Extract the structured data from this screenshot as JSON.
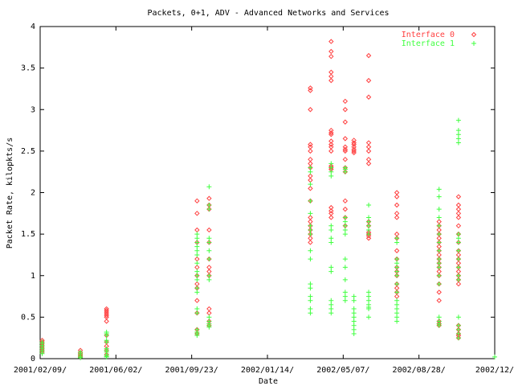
{
  "chart_data": {
    "type": "scatter",
    "title": "Packets, 0+1, ADV - Advanced Networks and Services",
    "xlabel": "Date",
    "ylabel": "Packet Rate, kilopkts/s",
    "xlim": [
      "2001-02-09",
      "2002-12-19"
    ],
    "ylim": [
      0,
      4
    ],
    "x_ticks": [
      "2001-02-09",
      "2001-06-02",
      "2001-09-23",
      "2002-01-14",
      "2002-05-07",
      "2002-08-28",
      "2002-12-19"
    ],
    "x_tick_labels": [
      "2001/02/09/",
      "2001/06/02/",
      "2001/09/23/",
      "2002/01/14/",
      "2002/05/07/",
      "2002/08/28/",
      "2002/12/"
    ],
    "y_ticks": [
      0,
      0.5,
      1,
      1.5,
      2,
      2.5,
      3,
      3.5,
      4
    ],
    "y_tick_labels": [
      "0",
      "0.5",
      "1",
      "1.5",
      "2",
      "2.5",
      "3",
      "3.5",
      "4"
    ],
    "grid": false,
    "legend_position": "top-right",
    "series": [
      {
        "name": "Interface 0",
        "marker": "diamond",
        "color": "#ff4040",
        "points": [
          {
            "x": "2001-02-12",
            "y": [
              0.22,
              0.2,
              0.18,
              0.16,
              0.14,
              0.12,
              0.1,
              0.08
            ]
          },
          {
            "x": "2001-04-10",
            "y": [
              0.1,
              0.07,
              0.05,
              0.03,
              0.02
            ]
          },
          {
            "x": "2001-05-19",
            "y": [
              0.6,
              0.58,
              0.56,
              0.54,
              0.52,
              0.5,
              0.45,
              0.28,
              0.2,
              0.15,
              0.1,
              0.05
            ]
          },
          {
            "x": "2001-10-01",
            "y": [
              1.9,
              1.75,
              1.55,
              1.4,
              1.2,
              1.1,
              1.0,
              0.9,
              0.85,
              0.7,
              0.55,
              0.35,
              0.3
            ]
          },
          {
            "x": "2001-10-19",
            "y": [
              1.93,
              1.85,
              1.8,
              1.55,
              1.4,
              1.2,
              1.1,
              1.05,
              1.0,
              0.6,
              0.55,
              0.45,
              0.4
            ]
          },
          {
            "x": "2002-03-19",
            "y": [
              3.26,
              3.23,
              3.0,
              2.58,
              2.55,
              2.5,
              2.4,
              2.35,
              2.3,
              2.2,
              2.15,
              2.05,
              1.9,
              1.7,
              1.65,
              1.6,
              1.55,
              1.5,
              1.45,
              1.4
            ]
          },
          {
            "x": "2002-04-19",
            "y": [
              3.82,
              3.7,
              3.64,
              3.45,
              3.4,
              3.35,
              2.75,
              2.72,
              2.7,
              2.62,
              2.58,
              2.55,
              2.5,
              2.32,
              2.3,
              2.28,
              1.82,
              1.78,
              1.75,
              1.7
            ]
          },
          {
            "x": "2002-05-10",
            "y": [
              3.1,
              3.0,
              2.85,
              2.65,
              2.55,
              2.52,
              2.5,
              2.4,
              2.3,
              2.25,
              1.9,
              1.8,
              1.7,
              1.6
            ]
          },
          {
            "x": "2002-05-23",
            "y": [
              2.63,
              2.6,
              2.58,
              2.55,
              2.52,
              2.5,
              2.48
            ]
          },
          {
            "x": "2002-06-14",
            "y": [
              3.65,
              3.35,
              3.15,
              2.6,
              2.55,
              2.5,
              2.4,
              2.35,
              1.65,
              1.6,
              1.52,
              1.5,
              1.48,
              1.45
            ]
          },
          {
            "x": "2002-07-26",
            "y": [
              2.0,
              1.95,
              1.85,
              1.75,
              1.7,
              1.5,
              1.45,
              1.3,
              1.2,
              1.1,
              1.05,
              1.0,
              0.9,
              0.85,
              0.8,
              0.75
            ]
          },
          {
            "x": "2002-09-27",
            "y": [
              1.65,
              1.6,
              1.55,
              1.5,
              1.45,
              1.4,
              1.35,
              1.3,
              1.25,
              1.2,
              1.15,
              1.1,
              1.05,
              1.0,
              0.9,
              0.8,
              0.7,
              0.45,
              0.42,
              0.4
            ]
          },
          {
            "x": "2002-10-26",
            "y": [
              1.95,
              1.85,
              1.8,
              1.75,
              1.7,
              1.6,
              1.5,
              1.4,
              1.3,
              1.25,
              1.2,
              1.15,
              1.1,
              1.05,
              1.0,
              0.95,
              0.9,
              0.4,
              0.35,
              0.3,
              0.28,
              0.25
            ]
          }
        ]
      },
      {
        "name": "Interface 1",
        "marker": "plus",
        "color": "#40ff40",
        "points": [
          {
            "x": "2001-02-12",
            "y": [
              0.2,
              0.18,
              0.16,
              0.14,
              0.12,
              0.1,
              0.08,
              0.06
            ]
          },
          {
            "x": "2001-04-10",
            "y": [
              0.08,
              0.06,
              0.04,
              0.02,
              0.01
            ]
          },
          {
            "x": "2001-05-19",
            "y": [
              0.32,
              0.3,
              0.28,
              0.22,
              0.2,
              0.12,
              0.1,
              0.08,
              0.05,
              0.03,
              0.02
            ]
          },
          {
            "x": "2001-10-01",
            "y": [
              1.5,
              1.45,
              1.4,
              1.35,
              1.3,
              1.25,
              1.15,
              1.05,
              1.0,
              0.95,
              0.85,
              0.8,
              0.6,
              0.55,
              0.35,
              0.32,
              0.3,
              0.28
            ]
          },
          {
            "x": "2001-10-19",
            "y": [
              2.07,
              1.85,
              1.8,
              1.45,
              1.4,
              1.3,
              1.2,
              1.0,
              0.95,
              0.5,
              0.45,
              0.42,
              0.4,
              0.38
            ]
          },
          {
            "x": "2002-03-19",
            "y": [
              2.3,
              2.25,
              2.1,
              1.9,
              1.75,
              1.6,
              1.55,
              1.5,
              1.3,
              1.2,
              0.9,
              0.85,
              0.75,
              0.7,
              0.6,
              0.55
            ]
          },
          {
            "x": "2002-04-19",
            "y": [
              2.35,
              2.3,
              2.25,
              2.2,
              1.6,
              1.55,
              1.45,
              1.4,
              1.1,
              1.05,
              0.7,
              0.65,
              0.6,
              0.55
            ]
          },
          {
            "x": "2002-05-10",
            "y": [
              2.3,
              2.28,
              2.25,
              1.7,
              1.65,
              1.6,
              1.55,
              1.5,
              1.2,
              1.1,
              0.95,
              0.8,
              0.75,
              0.7
            ]
          },
          {
            "x": "2002-05-23",
            "y": [
              0.75,
              0.7,
              0.6,
              0.55,
              0.5,
              0.45,
              0.4,
              0.35,
              0.3
            ]
          },
          {
            "x": "2002-06-14",
            "y": [
              1.85,
              1.7,
              1.65,
              1.6,
              1.55,
              1.5,
              0.8,
              0.75,
              0.7,
              0.65,
              0.62,
              0.6,
              0.5
            ]
          },
          {
            "x": "2002-07-26",
            "y": [
              1.45,
              1.4,
              1.2,
              1.15,
              1.1,
              1.05,
              1.0,
              0.9,
              0.8,
              0.7,
              0.65,
              0.6,
              0.55,
              0.5,
              0.45
            ]
          },
          {
            "x": "2002-09-27",
            "y": [
              2.04,
              1.95,
              1.8,
              1.7,
              1.6,
              1.5,
              1.4,
              1.3,
              1.2,
              1.15,
              1.1,
              1.0,
              0.9,
              0.5,
              0.45,
              0.42,
              0.4
            ]
          },
          {
            "x": "2002-10-26",
            "y": [
              2.87,
              2.75,
              2.7,
              2.65,
              2.6,
              1.5,
              1.45,
              1.4,
              1.3,
              1.2,
              1.1,
              1.0,
              0.95,
              0.5,
              0.4,
              0.35,
              0.3,
              0.25
            ]
          },
          {
            "x": "2002-12-19",
            "y": [
              0.02
            ]
          }
        ]
      }
    ]
  }
}
